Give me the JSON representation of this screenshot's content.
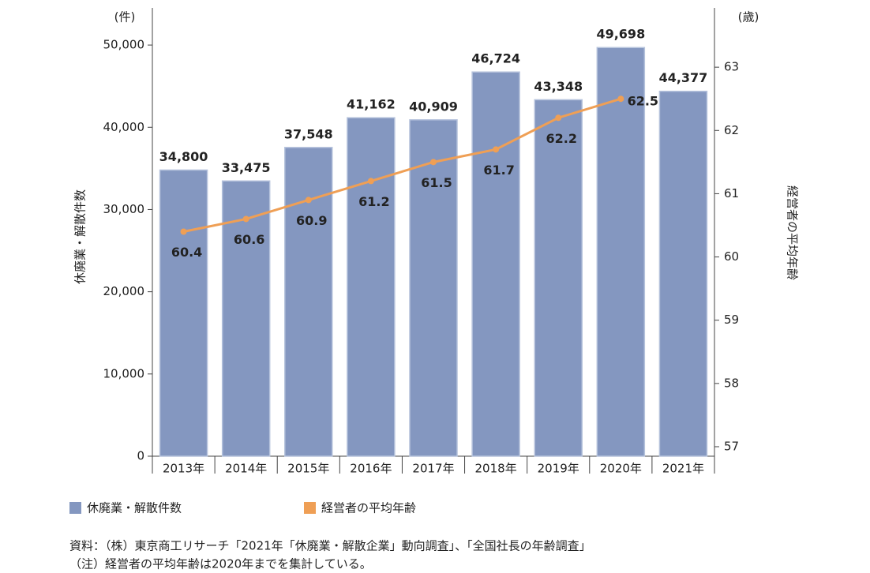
{
  "chart_data": {
    "type": "bar_line",
    "categories": [
      "2013年",
      "2014年",
      "2015年",
      "2016年",
      "2017年",
      "2018年",
      "2019年",
      "2020年",
      "2021年"
    ],
    "series": [
      {
        "name": "休廃業・解散件数",
        "type": "bar",
        "color": "#8497c0",
        "values": [
          34800,
          33475,
          37548,
          41162,
          40909,
          46724,
          43348,
          49698,
          44377
        ],
        "value_labels": [
          "34,800",
          "33,475",
          "37,548",
          "41,162",
          "40,909",
          "46,724",
          "43,348",
          "49,698",
          "44,377"
        ]
      },
      {
        "name": "経営者の平均年齢",
        "type": "line",
        "axis": "y2",
        "color": "#ef9f55",
        "values": [
          60.4,
          60.6,
          60.9,
          61.2,
          61.5,
          61.7,
          62.2,
          62.5,
          null
        ]
      }
    ],
    "ylabel": "休廃業・解散件数",
    "yunit": "(件)",
    "y2label": "経営者の平均年齢",
    "y2unit": "(歳)",
    "ylim": [
      0,
      55000
    ],
    "yticks": [
      0,
      {
        "value": 10000,
        "label": "10,000"
      },
      {
        "value": 20000,
        "label": "20,000"
      },
      {
        "value": 30000,
        "label": "30,000"
      },
      {
        "value": 40000,
        "label": "40,000"
      },
      {
        "value": 50000,
        "label": "50,000"
      }
    ],
    "y2lim": [
      56.85,
      64
    ],
    "y2ticks": [
      57,
      58,
      59,
      60,
      61,
      62,
      63
    ],
    "notes": [
      "資料：（株）東京商工リサーチ「2021年「休廃業・解散企業」動向調査」、「全国社長の年齢調査」",
      "（注）経営者の平均年齢は2020年までを集計している。"
    ]
  }
}
